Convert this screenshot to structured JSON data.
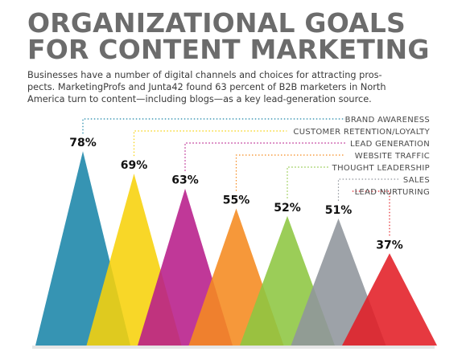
{
  "header": {
    "title_line1": "ORGANIZATIONAL GOALS",
    "title_line2": "FOR CONTENT MARKETING",
    "subtitle_line1": "Businesses have a number of digital channels and choices for attracting pros-",
    "subtitle_line2": "pects. MarketingProfs and Junta42 found 63 percent of B2B marketers in North",
    "subtitle_line3": "America turn to content—including blogs—as a key lead-generation source."
  },
  "chart_data": {
    "type": "area",
    "title": "ORGANIZATIONAL GOALS FOR CONTENT MARKETING",
    "categories": [
      "BRAND AWARENESS",
      "CUSTOMER RETENTION/LOYALTY",
      "LEAD GENERATION",
      "WEBSITE TRAFFIC",
      "THOUGHT LEADERSHIP",
      "SALES",
      "LEAD NURTURING"
    ],
    "values": [
      78,
      69,
      63,
      55,
      52,
      51,
      37
    ],
    "labels": [
      "78%",
      "69%",
      "63%",
      "55%",
      "52%",
      "51%",
      "37%"
    ],
    "colors": [
      "#1a85a8",
      "#f7d10a",
      "#b71c8a",
      "#f58a1f",
      "#8dc641",
      "#8f959c",
      "#e31e26"
    ],
    "ylim": [
      0,
      100
    ],
    "legend_placement": "top-right",
    "grid": false
  }
}
